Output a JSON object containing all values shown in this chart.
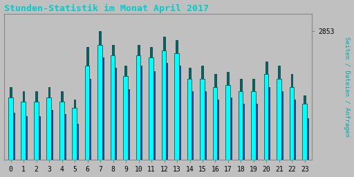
{
  "title": "Stunden-Statistik im Monat April 2017",
  "ylabel": "Seiten / Dateien / Anfragen",
  "background_color": "#c0c0c0",
  "plot_bg_color": "#c0c0c0",
  "title_color": "#00cccc",
  "ylabel_color": "#00aaaa",
  "ytick_label": "2853",
  "bar_color_cyan": "#00ffff",
  "bar_color_blue": "#0044cc",
  "bar_color_teal": "#006666",
  "bar_edgecolor": "#003333",
  "hours": [
    0,
    1,
    2,
    3,
    4,
    5,
    6,
    7,
    8,
    9,
    10,
    11,
    12,
    13,
    14,
    15,
    16,
    17,
    18,
    19,
    20,
    21,
    22,
    23
  ],
  "values_cyan": [
    2790,
    2786,
    2786,
    2790,
    2786,
    2780,
    2820,
    2840,
    2830,
    2810,
    2830,
    2828,
    2835,
    2832,
    2808,
    2808,
    2800,
    2802,
    2796,
    2796,
    2812,
    2808,
    2800,
    2784
  ],
  "values_blue": [
    2775,
    2772,
    2772,
    2778,
    2774,
    2765,
    2808,
    2828,
    2818,
    2798,
    2820,
    2815,
    2823,
    2820,
    2796,
    2796,
    2788,
    2790,
    2784,
    2784,
    2800,
    2796,
    2788,
    2770
  ],
  "values_teal": [
    2800,
    2796,
    2796,
    2800,
    2796,
    2788,
    2838,
    2853,
    2840,
    2820,
    2840,
    2838,
    2848,
    2845,
    2818,
    2820,
    2812,
    2814,
    2808,
    2808,
    2824,
    2820,
    2812,
    2792
  ],
  "ylim_min": 2730,
  "ylim_max": 2870,
  "bar_width": 0.27,
  "xlim_left": -0.55,
  "xlim_right": 23.55
}
